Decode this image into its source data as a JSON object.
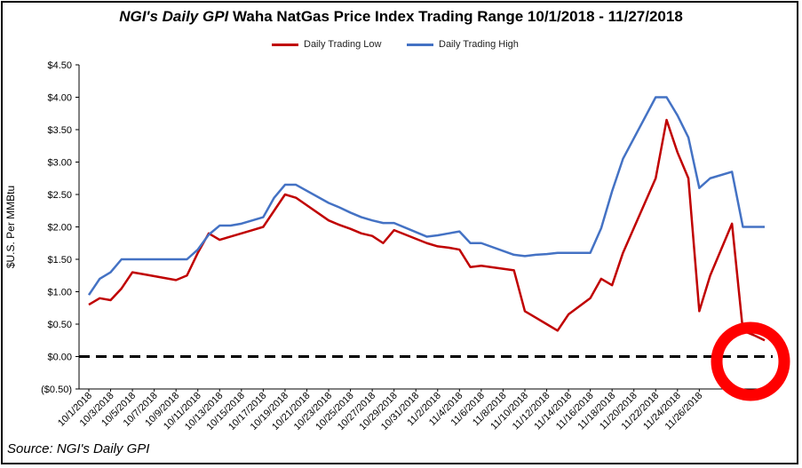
{
  "chart_data": {
    "type": "line",
    "title_italic": "NGI's Daily GPI",
    "title_rest": " Waha NatGas Price Index Trading Range 10/1/2018 - 11/27/2018",
    "ylabel": "$U.S. Per MMBtu",
    "source": "Source: NGI's Daily GPI",
    "ylim": [
      -0.5,
      4.5
    ],
    "y_ticks": [
      "$4.50",
      "$4.00",
      "$3.50",
      "$3.00",
      "$2.50",
      "$2.00",
      "$1.50",
      "$1.00",
      "$0.50",
      "$0.00",
      "($0.50)"
    ],
    "y_tick_values": [
      4.5,
      4.0,
      3.5,
      3.0,
      2.5,
      2.0,
      1.5,
      1.0,
      0.5,
      0.0,
      -0.5
    ],
    "x_ticks": [
      "10/1/2018",
      "10/3/2018",
      "10/5/2018",
      "10/7/2018",
      "10/9/2018",
      "10/11/2018",
      "10/13/2018",
      "10/15/2018",
      "10/17/2018",
      "10/19/2018",
      "10/21/2018",
      "10/23/2018",
      "10/25/2018",
      "10/27/2018",
      "10/29/2018",
      "10/31/2018",
      "11/2/2018",
      "11/4/2018",
      "11/6/2018",
      "11/8/2018",
      "11/10/2018",
      "11/12/2018",
      "11/14/2018",
      "11/16/2018",
      "11/18/2018",
      "11/20/2018",
      "11/22/2018",
      "11/24/2018",
      "11/26/2018"
    ],
    "series": [
      {
        "name": "Daily Trading Low",
        "color": "#c00000",
        "x": [
          0,
          1,
          2,
          3,
          4,
          5,
          8,
          9,
          10,
          11,
          12,
          13,
          14,
          15,
          16,
          17,
          18,
          19,
          22,
          23,
          24,
          25,
          26,
          27,
          28,
          31,
          32,
          33,
          34,
          35,
          36,
          39,
          40,
          41,
          42,
          43,
          44,
          46,
          47,
          48,
          49,
          52,
          53,
          54,
          55,
          56,
          57,
          59,
          60,
          61,
          62
        ],
        "values": [
          0.8,
          0.9,
          0.87,
          1.05,
          1.3,
          1.27,
          1.18,
          1.25,
          1.6,
          1.9,
          1.8,
          1.85,
          1.9,
          1.95,
          2.0,
          2.25,
          2.5,
          2.45,
          2.1,
          2.03,
          1.97,
          1.9,
          1.86,
          1.75,
          1.95,
          1.75,
          1.7,
          1.68,
          1.65,
          1.38,
          1.4,
          1.33,
          0.7,
          0.6,
          0.5,
          0.4,
          0.65,
          0.9,
          1.2,
          1.1,
          1.6,
          2.75,
          3.65,
          3.15,
          2.75,
          0.7,
          1.25,
          2.05,
          0.4,
          0.33,
          0.25
        ]
      },
      {
        "name": "Daily Trading High",
        "color": "#4472c4",
        "x": [
          0,
          1,
          2,
          3,
          4,
          5,
          8,
          9,
          10,
          11,
          12,
          13,
          14,
          15,
          16,
          17,
          18,
          19,
          22,
          23,
          24,
          25,
          26,
          27,
          28,
          31,
          32,
          33,
          34,
          35,
          36,
          39,
          40,
          41,
          42,
          43,
          44,
          46,
          47,
          48,
          49,
          52,
          53,
          54,
          55,
          56,
          57,
          59,
          60,
          61,
          62
        ],
        "values": [
          0.95,
          1.2,
          1.3,
          1.5,
          1.5,
          1.5,
          1.5,
          1.5,
          1.65,
          1.88,
          2.02,
          2.02,
          2.05,
          2.1,
          2.15,
          2.45,
          2.65,
          2.65,
          2.37,
          2.3,
          2.22,
          2.15,
          2.1,
          2.06,
          2.06,
          1.85,
          1.87,
          1.9,
          1.93,
          1.75,
          1.75,
          1.57,
          1.55,
          1.57,
          1.58,
          1.6,
          1.6,
          1.6,
          1.98,
          2.55,
          3.05,
          4.0,
          4.0,
          3.72,
          3.38,
          2.6,
          2.75,
          2.85,
          2.0,
          2.0,
          2.0
        ]
      }
    ]
  }
}
